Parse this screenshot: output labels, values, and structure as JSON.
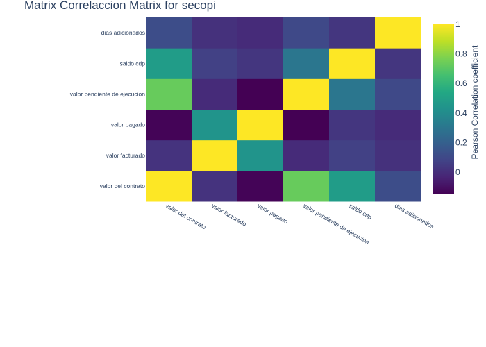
{
  "chart_data": {
    "type": "heatmap",
    "title": "Matrix Correlaccion Matrix for secopi",
    "x_categories": [
      "valor del contrato",
      "valor facturado",
      "valor pagado",
      "valor pendiente de ejecucion",
      "saldo cdp",
      "dias adicionados"
    ],
    "y_categories": [
      "valor del contrato",
      "valor facturado",
      "valor pagado",
      "valor pendiente de ejecucion",
      "saldo cdp",
      "dias adicionados"
    ],
    "z": [
      [
        1.0,
        0.02,
        -0.14,
        0.73,
        0.48,
        0.12
      ],
      [
        0.02,
        1.0,
        0.44,
        -0.01,
        0.07,
        0.01
      ],
      [
        -0.14,
        0.44,
        1.0,
        -0.15,
        0.03,
        -0.01
      ],
      [
        0.73,
        -0.01,
        -0.15,
        1.0,
        0.3,
        0.1
      ],
      [
        0.48,
        0.07,
        0.03,
        0.3,
        1.0,
        0.03
      ],
      [
        0.12,
        0.01,
        -0.01,
        0.1,
        0.03,
        1.0
      ]
    ],
    "zmin": -0.15,
    "zmax": 1.0,
    "colorscale": "Viridis",
    "colorbar_title": "Pearson Correlation coefficient",
    "colorbar_ticks": [
      0,
      0.2,
      0.4,
      0.6,
      0.8,
      1
    ],
    "colorbar_tick_labels": [
      "0",
      "0.2",
      "0.4",
      "0.6",
      "0.8",
      "1"
    ]
  }
}
